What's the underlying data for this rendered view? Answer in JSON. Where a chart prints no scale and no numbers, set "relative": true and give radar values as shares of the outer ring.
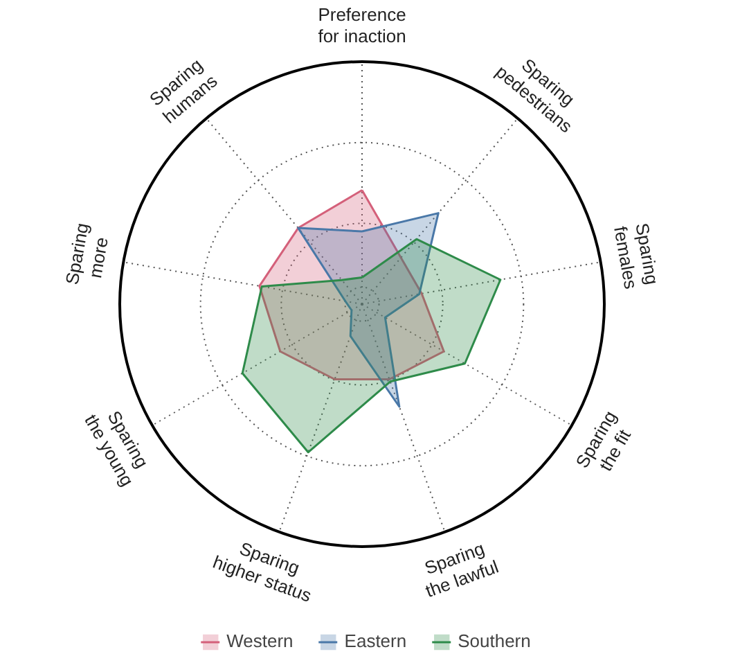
{
  "chart_data": {
    "type": "radar",
    "relative": true,
    "legend": "bottom",
    "grid": true,
    "categories": [
      "Preference\nfor inaction",
      "Sparing\npedestrians",
      "Sparing\nfemales",
      "Sparing\nthe fit",
      "Sparing\nthe lawful",
      "Sparing\nhigher status",
      "Sparing\nthe young",
      "Sparing\nmore",
      "Sparing\nhumans"
    ],
    "series": [
      {
        "name": "Western",
        "color": "#d4607a",
        "values": [
          0.47,
          0.25,
          0.25,
          0.39,
          0.33,
          0.33,
          0.39,
          0.43,
          0.41
        ]
      },
      {
        "name": "Eastern",
        "color": "#4a78a8",
        "values": [
          0.3,
          0.49,
          0.24,
          0.11,
          0.45,
          0.14,
          0.05,
          0.07,
          0.41
        ]
      },
      {
        "name": "Southern",
        "color": "#2e8b4a",
        "values": [
          0.11,
          0.35,
          0.58,
          0.49,
          0.34,
          0.65,
          0.57,
          0.42,
          0.13
        ]
      }
    ]
  }
}
